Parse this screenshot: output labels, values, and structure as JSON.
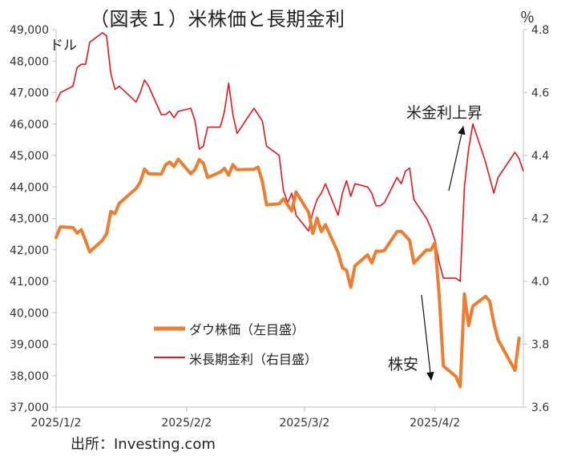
{
  "title": "（図表１）米株価と長期金利",
  "unit_left": "ドル",
  "unit_right": "％",
  "source": "出所：Investing.com",
  "annotations": {
    "rate_up": "米金利上昇",
    "stocks_down": "株安"
  },
  "colors": {
    "dow": "#ED7D31",
    "yield": "#E8151B",
    "axis": "#BFBFBF"
  },
  "chart_data": {
    "type": "line",
    "x_ticks": [
      "2025/1/2",
      "2025/2/2",
      "2025/3/2",
      "2025/4/2"
    ],
    "y_left": {
      "ticks": [
        "37,000",
        "38,000",
        "39,000",
        "40,000",
        "41,000",
        "42,000",
        "43,000",
        "44,000",
        "45,000",
        "46,000",
        "47,000",
        "48,000",
        "49,000"
      ],
      "range": [
        37000,
        49000
      ]
    },
    "y_right": {
      "ticks": [
        "3.6",
        "3.8",
        "4.0",
        "4.2",
        "4.4",
        "4.6",
        "4.8"
      ],
      "range": [
        3.6,
        4.8
      ]
    },
    "grid": false,
    "legend_position": "center-left",
    "series": [
      {
        "name": "ダウ株価（左目盛）",
        "axis": "left",
        "color": "#ED7D31",
        "points": [
          [
            "2025-01-02",
            42390
          ],
          [
            "2025-01-03",
            42730
          ],
          [
            "2025-01-06",
            42710
          ],
          [
            "2025-01-07",
            42530
          ],
          [
            "2025-01-08",
            42640
          ],
          [
            "2025-01-10",
            41940
          ],
          [
            "2025-01-13",
            42300
          ],
          [
            "2025-01-14",
            42510
          ],
          [
            "2025-01-15",
            43220
          ],
          [
            "2025-01-16",
            43150
          ],
          [
            "2025-01-17",
            43480
          ],
          [
            "2025-01-21",
            43950
          ],
          [
            "2025-01-22",
            44150
          ],
          [
            "2025-01-23",
            44570
          ],
          [
            "2025-01-24",
            44420
          ],
          [
            "2025-01-27",
            44410
          ],
          [
            "2025-01-28",
            44700
          ],
          [
            "2025-01-29",
            44790
          ],
          [
            "2025-01-30",
            44650
          ],
          [
            "2025-01-31",
            44880
          ],
          [
            "2025-02-03",
            44420
          ],
          [
            "2025-02-04",
            44550
          ],
          [
            "2025-02-05",
            44870
          ],
          [
            "2025-02-06",
            44750
          ],
          [
            "2025-02-07",
            44300
          ],
          [
            "2025-02-10",
            44470
          ],
          [
            "2025-02-11",
            44590
          ],
          [
            "2025-02-12",
            44370
          ],
          [
            "2025-02-13",
            44710
          ],
          [
            "2025-02-14",
            44550
          ],
          [
            "2025-02-18",
            44560
          ],
          [
            "2025-02-19",
            44630
          ],
          [
            "2025-02-20",
            44170
          ],
          [
            "2025-02-21",
            43430
          ],
          [
            "2025-02-24",
            43460
          ],
          [
            "2025-02-25",
            43620
          ],
          [
            "2025-02-26",
            43430
          ],
          [
            "2025-02-27",
            43240
          ],
          [
            "2025-02-28",
            43840
          ],
          [
            "2025-03-03",
            43190
          ],
          [
            "2025-03-04",
            42520
          ],
          [
            "2025-03-05",
            43010
          ],
          [
            "2025-03-06",
            42580
          ],
          [
            "2025-03-07",
            42800
          ],
          [
            "2025-03-10",
            41910
          ],
          [
            "2025-03-11",
            41430
          ],
          [
            "2025-03-12",
            41350
          ],
          [
            "2025-03-13",
            40810
          ],
          [
            "2025-03-14",
            41490
          ],
          [
            "2025-03-17",
            41840
          ],
          [
            "2025-03-18",
            41580
          ],
          [
            "2025-03-19",
            41960
          ],
          [
            "2025-03-20",
            41950
          ],
          [
            "2025-03-21",
            41980
          ],
          [
            "2025-03-24",
            42580
          ],
          [
            "2025-03-25",
            42590
          ],
          [
            "2025-03-26",
            42450
          ],
          [
            "2025-03-27",
            42300
          ],
          [
            "2025-03-28",
            41580
          ],
          [
            "2025-03-31",
            42000
          ],
          [
            "2025-04-01",
            41990
          ],
          [
            "2025-04-02",
            42230
          ],
          [
            "2025-04-03",
            40550
          ],
          [
            "2025-04-04",
            38310
          ],
          [
            "2025-04-07",
            37970
          ],
          [
            "2025-04-08",
            37650
          ],
          [
            "2025-04-09",
            40600
          ],
          [
            "2025-04-10",
            39590
          ],
          [
            "2025-04-11",
            40210
          ],
          [
            "2025-04-14",
            40520
          ],
          [
            "2025-04-15",
            40370
          ],
          [
            "2025-04-16",
            39670
          ],
          [
            "2025-04-17",
            39140
          ],
          [
            "2025-04-21",
            38170
          ],
          [
            "2025-04-22",
            39190
          ]
        ]
      },
      {
        "name": "米長期金利（右目盛）",
        "axis": "right",
        "color": "#E8151B",
        "points": [
          [
            "2025-01-02",
            4.57
          ],
          [
            "2025-01-03",
            4.6
          ],
          [
            "2025-01-06",
            4.62
          ],
          [
            "2025-01-07",
            4.68
          ],
          [
            "2025-01-08",
            4.69
          ],
          [
            "2025-01-09",
            4.69
          ],
          [
            "2025-01-10",
            4.76
          ],
          [
            "2025-01-13",
            4.79
          ],
          [
            "2025-01-14",
            4.78
          ],
          [
            "2025-01-15",
            4.66
          ],
          [
            "2025-01-16",
            4.61
          ],
          [
            "2025-01-17",
            4.62
          ],
          [
            "2025-01-21",
            4.57
          ],
          [
            "2025-01-22",
            4.6
          ],
          [
            "2025-01-23",
            4.64
          ],
          [
            "2025-01-24",
            4.62
          ],
          [
            "2025-01-27",
            4.53
          ],
          [
            "2025-01-28",
            4.53
          ],
          [
            "2025-01-29",
            4.54
          ],
          [
            "2025-01-30",
            4.52
          ],
          [
            "2025-01-31",
            4.54
          ],
          [
            "2025-02-03",
            4.55
          ],
          [
            "2025-02-04",
            4.51
          ],
          [
            "2025-02-05",
            4.42
          ],
          [
            "2025-02-06",
            4.43
          ],
          [
            "2025-02-07",
            4.49
          ],
          [
            "2025-02-10",
            4.49
          ],
          [
            "2025-02-11",
            4.54
          ],
          [
            "2025-02-12",
            4.63
          ],
          [
            "2025-02-13",
            4.53
          ],
          [
            "2025-02-14",
            4.47
          ],
          [
            "2025-02-18",
            4.55
          ],
          [
            "2025-02-19",
            4.53
          ],
          [
            "2025-02-20",
            4.51
          ],
          [
            "2025-02-21",
            4.43
          ],
          [
            "2025-02-24",
            4.4
          ],
          [
            "2025-02-25",
            4.29
          ],
          [
            "2025-02-26",
            4.25
          ],
          [
            "2025-02-27",
            4.28
          ],
          [
            "2025-02-28",
            4.21
          ],
          [
            "2025-03-03",
            4.16
          ],
          [
            "2025-03-04",
            4.22
          ],
          [
            "2025-03-05",
            4.26
          ],
          [
            "2025-03-06",
            4.28
          ],
          [
            "2025-03-07",
            4.31
          ],
          [
            "2025-03-10",
            4.21
          ],
          [
            "2025-03-11",
            4.28
          ],
          [
            "2025-03-12",
            4.32
          ],
          [
            "2025-03-13",
            4.27
          ],
          [
            "2025-03-14",
            4.31
          ],
          [
            "2025-03-17",
            4.3
          ],
          [
            "2025-03-18",
            4.28
          ],
          [
            "2025-03-19",
            4.24
          ],
          [
            "2025-03-20",
            4.24
          ],
          [
            "2025-03-21",
            4.25
          ],
          [
            "2025-03-24",
            4.33
          ],
          [
            "2025-03-25",
            4.31
          ],
          [
            "2025-03-26",
            4.35
          ],
          [
            "2025-03-27",
            4.36
          ],
          [
            "2025-03-28",
            4.26
          ],
          [
            "2025-03-31",
            4.2
          ],
          [
            "2025-04-01",
            4.17
          ],
          [
            "2025-04-02",
            4.13
          ],
          [
            "2025-04-03",
            4.06
          ],
          [
            "2025-04-04",
            4.01
          ],
          [
            "2025-04-07",
            4.01
          ],
          [
            "2025-04-08",
            4.0
          ],
          [
            "2025-04-09",
            4.3
          ],
          [
            "2025-04-10",
            4.42
          ],
          [
            "2025-04-11",
            4.5
          ],
          [
            "2025-04-14",
            4.38
          ],
          [
            "2025-04-15",
            4.33
          ],
          [
            "2025-04-16",
            4.28
          ],
          [
            "2025-04-17",
            4.33
          ],
          [
            "2025-04-21",
            4.41
          ],
          [
            "2025-04-22",
            4.39
          ],
          [
            "2025-04-23",
            4.35
          ]
        ]
      }
    ]
  }
}
